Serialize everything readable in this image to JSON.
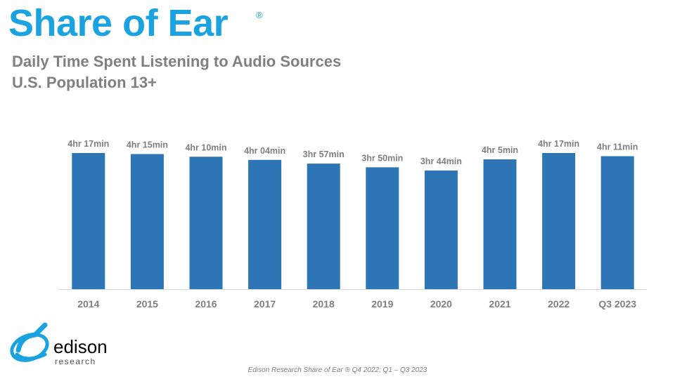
{
  "header": {
    "title": "Share of Ear",
    "registered_mark": "®",
    "subtitle_line1": "Daily Time Spent Listening to Audio Sources",
    "subtitle_line2": "U.S. Population 13+"
  },
  "chart_data": {
    "type": "bar",
    "title": "",
    "xlabel": "",
    "ylabel": "",
    "categories": [
      "2014",
      "2015",
      "2016",
      "2017",
      "2018",
      "2019",
      "2020",
      "2021",
      "2022",
      "Q3 2023"
    ],
    "values": [
      257,
      255,
      250,
      244,
      237,
      230,
      224,
      245,
      257,
      251
    ],
    "value_labels": [
      "4hr 17min",
      "4hr 15min",
      "4hr 10min",
      "4hr 04min",
      "3hr 57min",
      "3hr 50min",
      "3hr 44min",
      "4hr 5min",
      "4hr 17min",
      "4hr 11min"
    ],
    "ylim": [
      0,
      257
    ],
    "grid": false,
    "bar_color": "#2e75b6",
    "axis_color": "#d9d9d9"
  },
  "logo": {
    "word": "edison",
    "sub": "research"
  },
  "footnote": "Edison Research Share of Ear ® Q4 2022; Q1 – Q3 2023",
  "colors": {
    "title": "#1aa3e0",
    "subtitle": "#808080"
  }
}
